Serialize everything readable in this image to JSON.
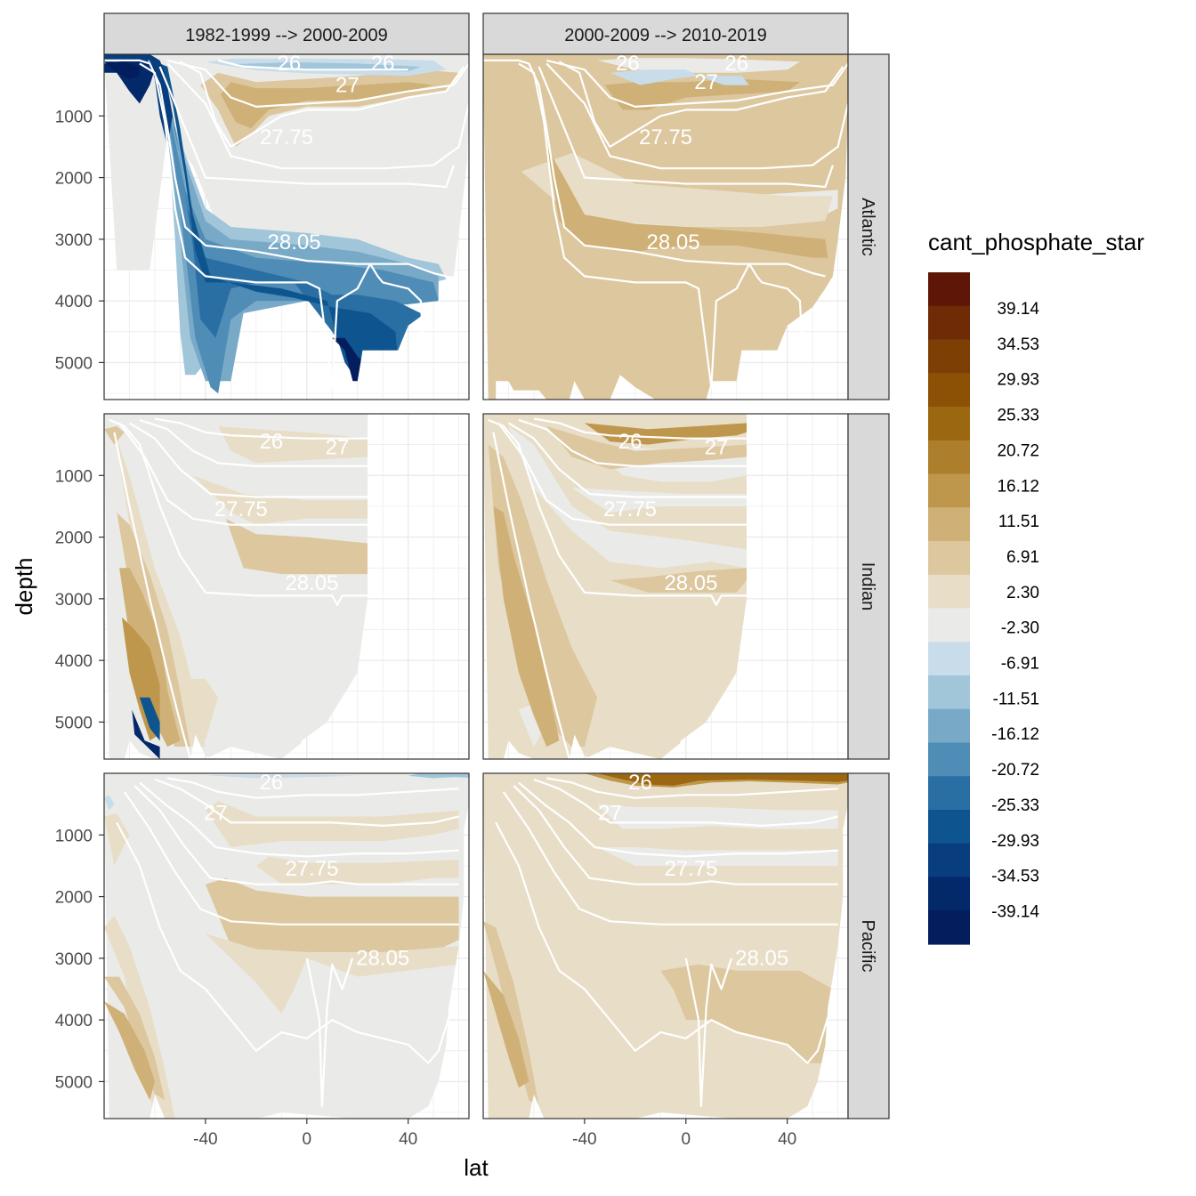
{
  "chart_data": {
    "type": "heatmap",
    "xlabel": "lat",
    "ylabel": "depth",
    "xlim": [
      -80,
      64
    ],
    "ylim": [
      5600,
      0
    ],
    "x_ticks": [
      -40,
      0,
      40
    ],
    "y_ticks": [
      1000,
      2000,
      3000,
      4000,
      5000
    ],
    "columns": [
      "1982-1999 --> 2000-2009",
      "2000-2009 --> 2010-2019"
    ],
    "rows": [
      "Atlantic",
      "Indian",
      "Pacific"
    ],
    "legend": {
      "title": "cant_phosphate_star",
      "labels": [
        "39.14",
        "34.53",
        "29.93",
        "25.33",
        "20.72",
        "16.12",
        "11.51",
        "6.91",
        "2.30",
        "-2.30",
        "-6.91",
        "-11.51",
        "-16.12",
        "-20.72",
        "-25.33",
        "-29.93",
        "-34.53",
        "-39.14"
      ],
      "colors": [
        "#5e1706",
        "#6e2b06",
        "#7d3f04",
        "#8c5105",
        "#9c6711",
        "#ad7e2c",
        "#be974d",
        "#cfb076",
        "#dcc79f",
        "#e8dec8",
        "#eaebe8",
        "#c9dcea",
        "#a1c6da",
        "#78aac8",
        "#4f8cb6",
        "#2a6fa3",
        "#0e548f",
        "#083d7e",
        "#03296b",
        "#041d5c"
      ]
    },
    "contour_labels": [
      "26",
      "27",
      "27.75",
      "28.05"
    ],
    "panels": [
      {
        "row": "Atlantic",
        "column": "1982-1999 --> 2000-2009",
        "pattern": "atl1"
      },
      {
        "row": "Atlantic",
        "column": "2000-2009 --> 2010-2019",
        "pattern": "atl2"
      },
      {
        "row": "Indian",
        "column": "1982-1999 --> 2000-2009",
        "pattern": "ind1"
      },
      {
        "row": "Indian",
        "column": "2000-2009 --> 2010-2019",
        "pattern": "ind2"
      },
      {
        "row": "Pacific",
        "column": "1982-1999 --> 2000-2009",
        "pattern": "pac1"
      },
      {
        "row": "Pacific",
        "column": "2000-2009 --> 2010-2019",
        "pattern": "pac2"
      }
    ]
  }
}
